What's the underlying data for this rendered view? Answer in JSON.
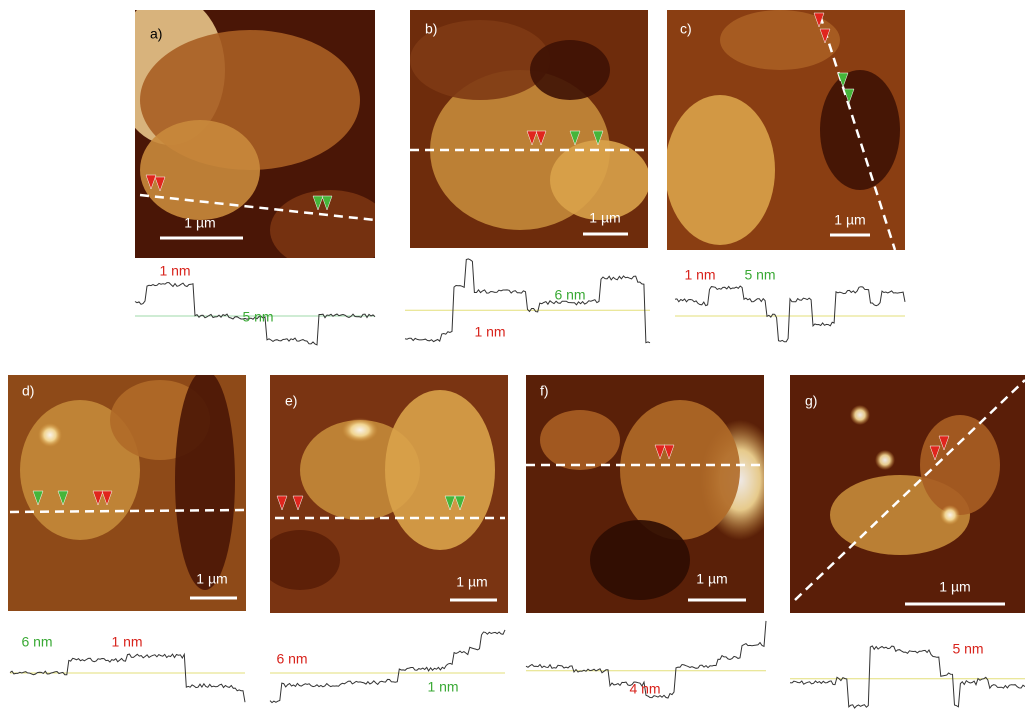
{
  "panels": [
    {
      "label": "a)",
      "scale_bar": "1 µm",
      "heights": [
        {
          "text": "1 nm",
          "color": "#d8231c"
        },
        {
          "text": "5 nm",
          "color": "#3aa935"
        }
      ]
    },
    {
      "label": "b)",
      "scale_bar": "1 µm",
      "heights": [
        {
          "text": "6 nm",
          "color": "#3aa935"
        },
        {
          "text": "1 nm",
          "color": "#d8231c"
        }
      ]
    },
    {
      "label": "c)",
      "scale_bar": "1 µm",
      "heights": [
        {
          "text": "1 nm",
          "color": "#d8231c"
        },
        {
          "text": "5 nm",
          "color": "#3aa935"
        }
      ]
    },
    {
      "label": "d)",
      "scale_bar": "1 µm",
      "heights": [
        {
          "text": "6 nm",
          "color": "#3aa935"
        },
        {
          "text": "1 nm",
          "color": "#d8231c"
        }
      ]
    },
    {
      "label": "e)",
      "scale_bar": "1 µm",
      "heights": [
        {
          "text": "6 nm",
          "color": "#d8231c"
        },
        {
          "text": "1 nm",
          "color": "#3aa935"
        }
      ]
    },
    {
      "label": "f)",
      "scale_bar": "1 µm",
      "heights": [
        {
          "text": "4 nm",
          "color": "#d8231c"
        }
      ]
    },
    {
      "label": "g)",
      "scale_bar": "1 µm",
      "heights": [
        {
          "text": "5 nm",
          "color": "#d8231c"
        }
      ]
    }
  ]
}
